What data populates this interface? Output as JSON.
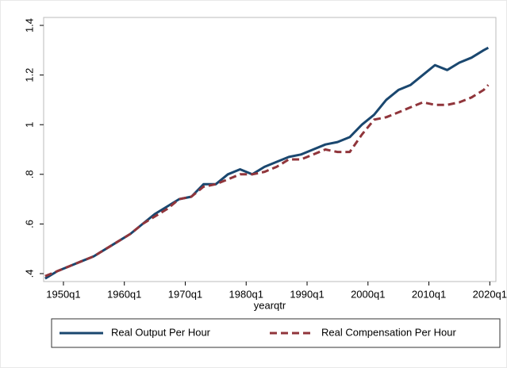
{
  "chart_data": {
    "type": "line",
    "x_label": "yearqtr",
    "x": [
      "1947q1",
      "1949q1",
      "1951q1",
      "1953q1",
      "1955q1",
      "1957q1",
      "1959q1",
      "1961q1",
      "1963q1",
      "1965q1",
      "1967q1",
      "1969q1",
      "1971q1",
      "1973q1",
      "1975q1",
      "1977q1",
      "1979q1",
      "1981q1",
      "1983q1",
      "1985q1",
      "1987q1",
      "1989q1",
      "1991q1",
      "1993q1",
      "1995q1",
      "1997q1",
      "1999q1",
      "2001q1",
      "2003q1",
      "2005q1",
      "2007q1",
      "2009q1",
      "2011q1",
      "2013q1",
      "2015q1",
      "2017q1",
      "2019q1",
      "2019q4"
    ],
    "series": [
      {
        "name": "Real Output Per Hour",
        "color": "#1a476f",
        "dash": false,
        "values": [
          0.38,
          0.41,
          0.43,
          0.45,
          0.47,
          0.5,
          0.53,
          0.56,
          0.6,
          0.64,
          0.67,
          0.7,
          0.71,
          0.76,
          0.76,
          0.8,
          0.82,
          0.8,
          0.83,
          0.85,
          0.87,
          0.88,
          0.9,
          0.92,
          0.93,
          0.95,
          1.0,
          1.04,
          1.1,
          1.14,
          1.16,
          1.2,
          1.24,
          1.22,
          1.25,
          1.27,
          1.3,
          1.31
        ]
      },
      {
        "name": "Real Compensation Per Hour",
        "color": "#90353b",
        "dash": true,
        "values": [
          0.39,
          0.41,
          0.43,
          0.45,
          0.47,
          0.5,
          0.53,
          0.56,
          0.6,
          0.63,
          0.66,
          0.7,
          0.71,
          0.75,
          0.76,
          0.78,
          0.8,
          0.8,
          0.81,
          0.83,
          0.86,
          0.86,
          0.88,
          0.9,
          0.89,
          0.89,
          0.96,
          1.02,
          1.03,
          1.05,
          1.07,
          1.09,
          1.08,
          1.08,
          1.09,
          1.11,
          1.14,
          1.16
        ]
      }
    ],
    "xlim": [
      1946.75,
      2021
    ],
    "xticks": [
      "1950q1",
      "1960q1",
      "1970q1",
      "1980q1",
      "1990q1",
      "2000q1",
      "2010q1",
      "2020q1"
    ],
    "ylim": [
      0.368,
      1.432
    ],
    "yticks": [
      {
        "value": 0.4,
        "label": ".4"
      },
      {
        "value": 0.6,
        "label": ".6"
      },
      {
        "value": 0.8,
        "label": ".8"
      },
      1,
      {
        "value": 1.2,
        "label": "1.2"
      },
      {
        "value": 1.4,
        "label": "1.4"
      }
    ],
    "legend": "bottom"
  }
}
